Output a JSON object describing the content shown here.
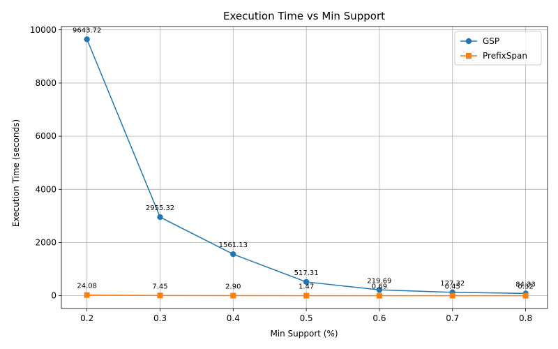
{
  "chart_data": {
    "type": "line",
    "title": "Execution Time vs Min Support",
    "xlabel": "Min Support (%)",
    "ylabel": "Execution Time (seconds)",
    "x": [
      0.2,
      0.3,
      0.4,
      0.5,
      0.6,
      0.7,
      0.8
    ],
    "x_ticks": [
      "0.2",
      "0.3",
      "0.4",
      "0.5",
      "0.6",
      "0.7",
      "0.8"
    ],
    "xlim": [
      0.165,
      0.83
    ],
    "y_ticks": [
      "0",
      "2000",
      "4000",
      "6000",
      "8000",
      "10000"
    ],
    "y_tick_values": [
      0,
      2000,
      4000,
      6000,
      8000,
      10000
    ],
    "ylim": [
      -482,
      10125
    ],
    "grid": true,
    "legend_position": "top-right",
    "series": [
      {
        "name": "GSP",
        "color": "#1f77b4",
        "marker": "circle",
        "values": [
          9643.72,
          2955.32,
          1561.13,
          517.31,
          219.69,
          127.32,
          84.33
        ],
        "labels": [
          "9643.72",
          "2955.32",
          "1561.13",
          "517.31",
          "219.69",
          "127.32",
          "84.33"
        ]
      },
      {
        "name": "PrefixSpan",
        "color": "#ff7f0e",
        "marker": "square",
        "values": [
          24.08,
          7.45,
          2.9,
          1.47,
          0.69,
          0.45,
          0.32
        ],
        "labels": [
          "24.08",
          "7.45",
          "2.90",
          "1.47",
          "0.69",
          "0.45",
          "0.32"
        ]
      }
    ]
  }
}
